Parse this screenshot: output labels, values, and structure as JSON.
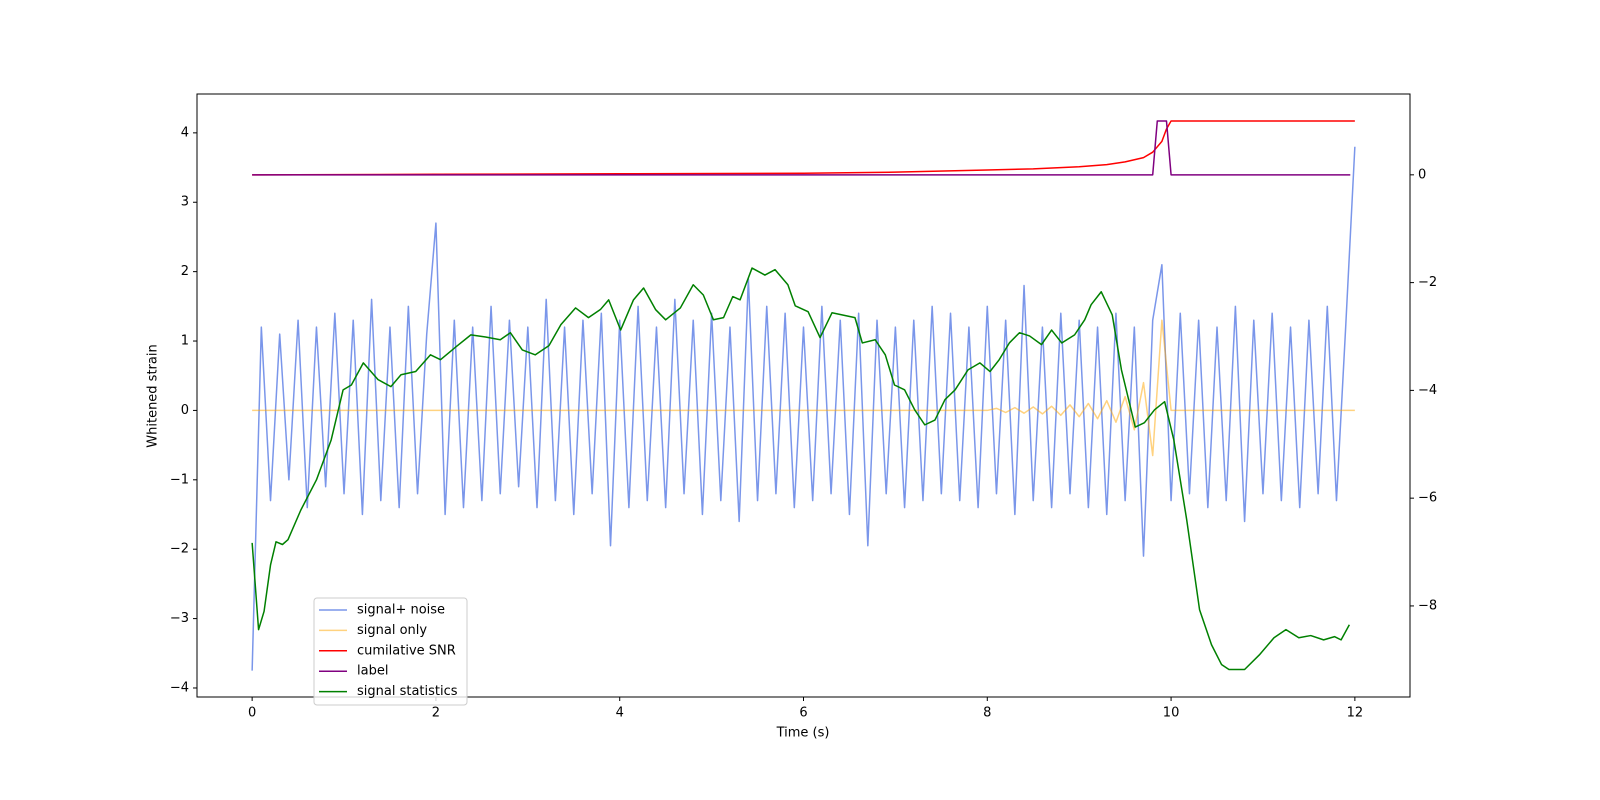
{
  "chart_data": {
    "type": "line",
    "xlabel": "Time (s)",
    "ylabel": "Whitened strain",
    "xlim": [
      -0.6,
      12.6
    ],
    "ylim": [
      -4.13,
      4.56
    ],
    "y2lim": [
      -9.69,
      1.5
    ],
    "xticks": [
      0,
      2,
      4,
      6,
      8,
      10,
      12
    ],
    "yticks": [
      {
        "value": -4,
        "label": "−4"
      },
      {
        "value": -3,
        "label": "−3"
      },
      {
        "value": -2,
        "label": "−2"
      },
      {
        "value": -1,
        "label": "−1"
      },
      0,
      1,
      2,
      3,
      4
    ],
    "y2ticks": [
      {
        "value": -8,
        "label": "−8"
      },
      {
        "value": -6,
        "label": "−6"
      },
      {
        "value": -4,
        "label": "−4"
      },
      {
        "value": -2,
        "label": "−2"
      },
      0
    ],
    "legend_loc": "lower left",
    "series": [
      {
        "name": "signal+ noise",
        "color": "#4169e1",
        "alpha": 0.7,
        "x": [
          0,
          0.1,
          0.2,
          0.3,
          0.4,
          0.5,
          0.6,
          0.7,
          0.8,
          0.9,
          1,
          1.1,
          1.2,
          1.3,
          1.4,
          1.5,
          1.6,
          1.7,
          1.8,
          1.9,
          2,
          2.1,
          2.2,
          2.3,
          2.4,
          2.5,
          2.6,
          2.7,
          2.8,
          2.9,
          3,
          3.1,
          3.2,
          3.3,
          3.4,
          3.5,
          3.6,
          3.7,
          3.8,
          3.9,
          4,
          4.1,
          4.2,
          4.3,
          4.4,
          4.5,
          4.6,
          4.7,
          4.8,
          4.9,
          5,
          5.1,
          5.2,
          5.3,
          5.4,
          5.5,
          5.6,
          5.7,
          5.8,
          5.9,
          6,
          6.1,
          6.2,
          6.3,
          6.4,
          6.5,
          6.6,
          6.7,
          6.8,
          6.9,
          7,
          7.1,
          7.2,
          7.3,
          7.4,
          7.5,
          7.6,
          7.7,
          7.8,
          7.9,
          8,
          8.1,
          8.2,
          8.3,
          8.4,
          8.5,
          8.6,
          8.7,
          8.8,
          8.9,
          9,
          9.1,
          9.2,
          9.3,
          9.4,
          9.5,
          9.6,
          9.7,
          9.8,
          9.9,
          10,
          10.1,
          10.2,
          10.3,
          10.4,
          10.5,
          10.6,
          10.7,
          10.8,
          10.9,
          11,
          11.1,
          11.2,
          11.3,
          11.4,
          11.5,
          11.6,
          11.7,
          11.8,
          11.9,
          12
        ],
        "values": [
          -3.75,
          1.2,
          -1.3,
          1.1,
          -1.0,
          1.3,
          -1.4,
          1.2,
          -1.1,
          1.4,
          -1.2,
          1.3,
          -1.5,
          1.6,
          -1.3,
          1.2,
          -1.4,
          1.5,
          -1.2,
          1.1,
          2.7,
          -1.5,
          1.3,
          -1.4,
          1.2,
          -1.3,
          1.5,
          -1.2,
          1.3,
          -1.1,
          1.2,
          -1.4,
          1.6,
          -1.3,
          1.2,
          -1.5,
          1.3,
          -1.2,
          1.4,
          -1.95,
          1.3,
          -1.4,
          1.5,
          -1.3,
          1.2,
          -1.4,
          1.6,
          -1.2,
          1.3,
          -1.5,
          1.4,
          -1.3,
          1.2,
          -1.6,
          1.9,
          -1.3,
          1.5,
          -1.2,
          1.4,
          -1.4,
          1.2,
          -1.3,
          1.5,
          -1.2,
          1.3,
          -1.5,
          1.4,
          -1.95,
          1.3,
          -1.2,
          1.2,
          -1.4,
          1.3,
          -1.3,
          1.5,
          -1.2,
          1.4,
          -1.3,
          1.2,
          -1.4,
          1.5,
          -1.2,
          1.3,
          -1.5,
          1.8,
          -1.3,
          1.2,
          -1.4,
          1.4,
          -1.2,
          1.3,
          -1.4,
          1.2,
          -1.5,
          1.4,
          -1.3,
          1.2,
          -2.1,
          1.3,
          2.1,
          -1.3,
          1.4,
          -1.2,
          1.3,
          -1.4,
          1.2,
          -1.3,
          1.5,
          -1.6,
          1.3,
          -1.2,
          1.4,
          -1.3,
          1.2,
          -1.4,
          1.3,
          -1.2,
          1.5,
          -1.3,
          1.2,
          3.8
        ]
      },
      {
        "name": "signal only",
        "color": "#ffa500",
        "alpha": 0.5,
        "x": [
          0,
          1,
          2,
          3,
          4,
          5,
          6,
          7,
          8,
          8.1,
          8.2,
          8.3,
          8.4,
          8.5,
          8.6,
          8.7,
          8.8,
          8.9,
          9,
          9.1,
          9.2,
          9.3,
          9.4,
          9.5,
          9.6,
          9.7,
          9.8,
          9.9,
          10,
          12
        ],
        "values": [
          0,
          0,
          0,
          0,
          0,
          0,
          0,
          0,
          0,
          0.03,
          -0.03,
          0.04,
          -0.04,
          0.05,
          -0.05,
          0.06,
          -0.07,
          0.08,
          -0.09,
          0.1,
          -0.12,
          0.14,
          -0.17,
          0.2,
          -0.28,
          0.4,
          -0.65,
          1.3,
          0,
          0
        ]
      },
      {
        "name": "cumilative SNR",
        "color": "#ff0000",
        "axis": "y2",
        "x": [
          0,
          2,
          4,
          6,
          7,
          8,
          8.5,
          9,
          9.3,
          9.5,
          9.7,
          9.8,
          9.9,
          9.95,
          10,
          12
        ],
        "values": [
          0,
          0.01,
          0.02,
          0.03,
          0.05,
          0.09,
          0.11,
          0.15,
          0.19,
          0.24,
          0.32,
          0.42,
          0.62,
          0.85,
          1,
          1
        ]
      },
      {
        "name": "label",
        "color": "#800080",
        "axis": "y2",
        "x": [
          0,
          9.8,
          9.85,
          9.95,
          10,
          11.95
        ],
        "values": [
          0,
          0,
          1,
          1,
          0,
          0
        ]
      },
      {
        "name": "signal statistics",
        "color": "#008000",
        "axis": "y2",
        "x": [
          0,
          0.07,
          0.13,
          0.2,
          0.26,
          0.33,
          0.39,
          0.53,
          0.7,
          0.86,
          0.99,
          1.08,
          1.21,
          1.37,
          1.51,
          1.62,
          1.78,
          1.94,
          2.05,
          2.22,
          2.38,
          2.54,
          2.7,
          2.81,
          2.94,
          3.08,
          3.23,
          3.36,
          3.52,
          3.66,
          3.79,
          3.88,
          4.01,
          4.15,
          4.26,
          4.39,
          4.5,
          4.66,
          4.8,
          4.91,
          5.02,
          5.13,
          5.23,
          5.31,
          5.44,
          5.58,
          5.69,
          5.83,
          5.91,
          6.05,
          6.18,
          6.31,
          6.56,
          6.64,
          6.78,
          6.89,
          6.99,
          7.1,
          7.21,
          7.32,
          7.43,
          7.54,
          7.65,
          7.79,
          7.92,
          8.03,
          8.13,
          8.24,
          8.35,
          8.46,
          8.59,
          8.7,
          8.81,
          8.95,
          9.06,
          9.13,
          9.24,
          9.36,
          9.46,
          9.61,
          9.71,
          9.82,
          9.93,
          10.03,
          10.17,
          10.31,
          10.44,
          10.55,
          10.63,
          10.8,
          10.96,
          11.12,
          11.25,
          11.39,
          11.52,
          11.66,
          11.78,
          11.85,
          11.94
        ],
        "values": [
          -6.83,
          -8.44,
          -8.1,
          -7.24,
          -6.81,
          -6.86,
          -6.77,
          -6.22,
          -5.66,
          -4.92,
          -3.99,
          -3.9,
          -3.49,
          -3.8,
          -3.93,
          -3.71,
          -3.65,
          -3.34,
          -3.43,
          -3.19,
          -2.97,
          -3.01,
          -3.06,
          -2.93,
          -3.25,
          -3.34,
          -3.17,
          -2.78,
          -2.47,
          -2.65,
          -2.5,
          -2.32,
          -2.88,
          -2.32,
          -2.1,
          -2.5,
          -2.69,
          -2.47,
          -2.04,
          -2.23,
          -2.69,
          -2.65,
          -2.26,
          -2.32,
          -1.73,
          -1.86,
          -1.76,
          -2.04,
          -2.43,
          -2.54,
          -3.02,
          -2.56,
          -2.65,
          -3.12,
          -3.06,
          -3.34,
          -3.9,
          -3.99,
          -4.36,
          -4.64,
          -4.55,
          -4.17,
          -3.99,
          -3.62,
          -3.49,
          -3.65,
          -3.43,
          -3.12,
          -2.93,
          -2.99,
          -3.15,
          -2.88,
          -3.12,
          -2.97,
          -2.69,
          -2.41,
          -2.17,
          -2.6,
          -3.62,
          -4.68,
          -4.6,
          -4.36,
          -4.21,
          -4.92,
          -6.4,
          -8.07,
          -8.72,
          -9.09,
          -9.18,
          -9.18,
          -8.91,
          -8.59,
          -8.44,
          -8.59,
          -8.55,
          -8.63,
          -8.57,
          -8.63,
          -8.35
        ]
      }
    ]
  }
}
